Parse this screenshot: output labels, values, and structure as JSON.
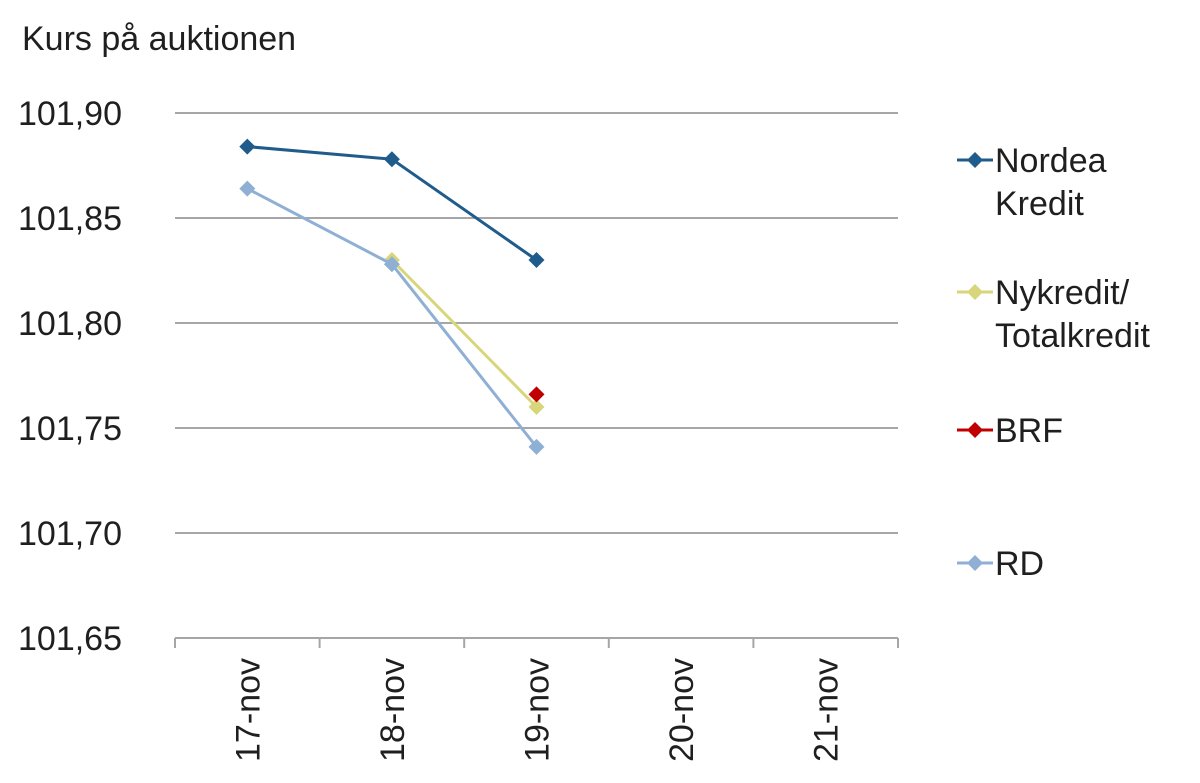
{
  "chart_data": {
    "type": "line",
    "title": "Kurs på auktionen",
    "categories": [
      "17-nov",
      "18-nov",
      "19-nov",
      "20-nov",
      "21-nov"
    ],
    "ylim": [
      101.65,
      101.9
    ],
    "yticks": [
      "101,90",
      "101,85",
      "101,80",
      "101,75",
      "101,70",
      "101,65"
    ],
    "grid": true,
    "legend_position": "right",
    "series": [
      {
        "name": "Nordea Kredit",
        "legend_lines": [
          "Nordea",
          "Kredit"
        ],
        "color": "#1f5c8b",
        "values": [
          101.884,
          101.878,
          101.83,
          null,
          null
        ]
      },
      {
        "name": "Nykredit/ Totalkredit",
        "legend_lines": [
          "Nykredit/",
          "Totalkredit"
        ],
        "color": "#d8d67a",
        "values": [
          null,
          101.83,
          101.76,
          null,
          null
        ]
      },
      {
        "name": "BRF",
        "legend_lines": [
          "BRF"
        ],
        "color": "#c00000",
        "values": [
          null,
          null,
          101.766,
          null,
          null
        ]
      },
      {
        "name": "RD",
        "legend_lines": [
          "RD"
        ],
        "color": "#8fb0d4",
        "values": [
          101.864,
          101.828,
          101.741,
          null,
          null
        ]
      }
    ]
  }
}
